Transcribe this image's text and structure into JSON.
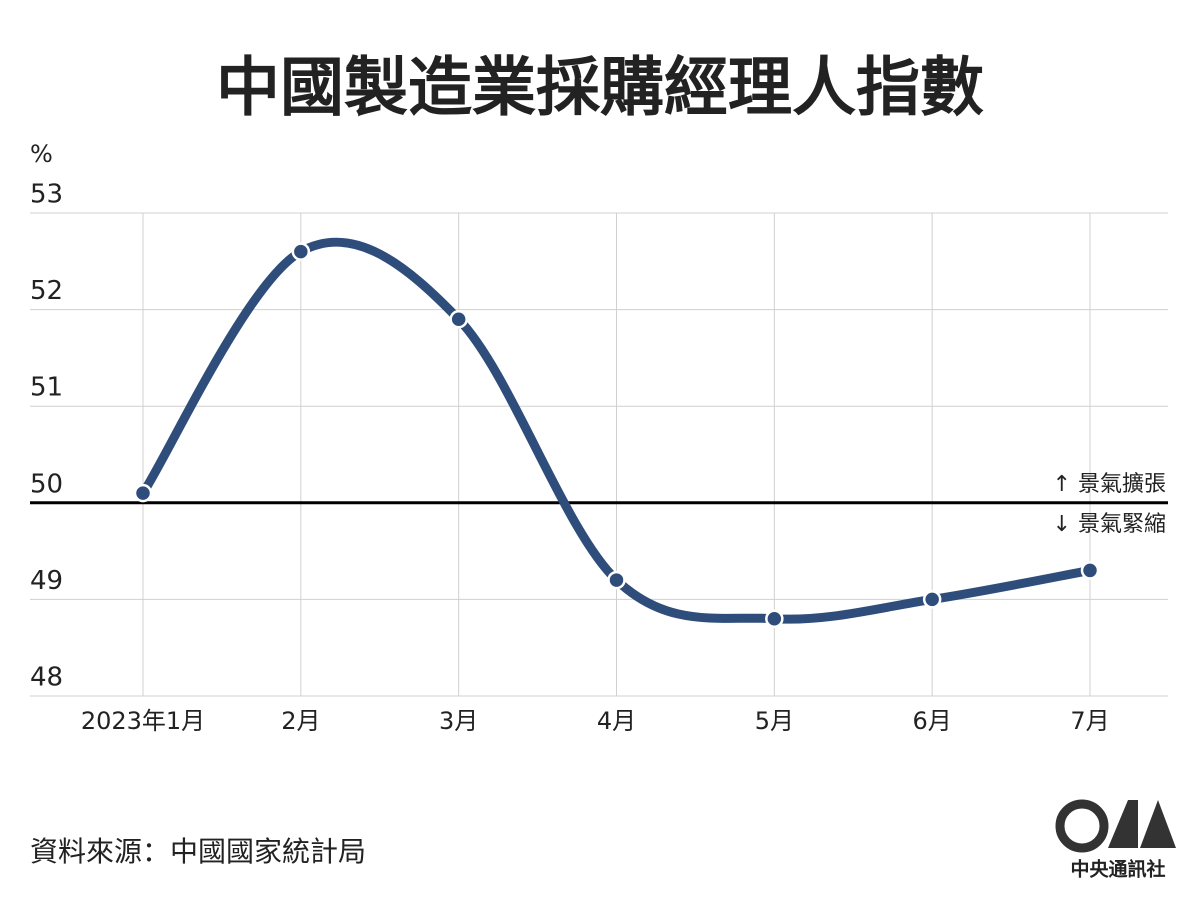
{
  "chart_data": {
    "type": "line",
    "title": "中國製造業採購經理人指數",
    "ylabel": "%",
    "categories": [
      "2023年1月",
      "2月",
      "3月",
      "4月",
      "5月",
      "6月",
      "7月"
    ],
    "series": [
      {
        "name": "中國製造業採購經理人指數",
        "color": "#2e4d7b",
        "values": [
          50.1,
          52.6,
          51.9,
          49.2,
          48.8,
          49.0,
          49.3
        ]
      }
    ],
    "ylim": [
      48,
      53
    ],
    "yticks": [
      48,
      49,
      50,
      51,
      52,
      53
    ],
    "grid": true,
    "reference_line": {
      "value": 50,
      "labels": [
        "↑ 景氣擴張",
        "↓ 景氣緊縮"
      ]
    },
    "source": "資料來源：中國國家統計局",
    "logo_text": "中央通訊社"
  }
}
